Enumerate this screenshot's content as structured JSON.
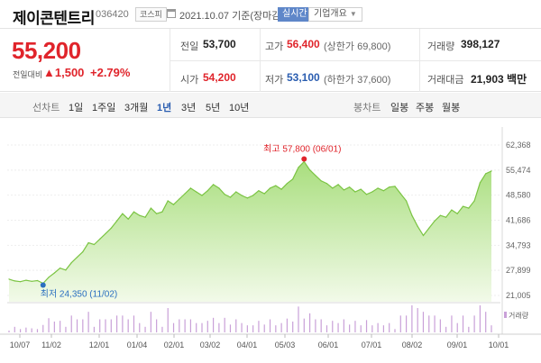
{
  "header": {
    "name": "제이콘텐트리",
    "code": "036420",
    "market": "코스피",
    "date": "2021.10.07 기준(장마감)",
    "realtime": "실시간",
    "company_info": "기업개요"
  },
  "price": {
    "current": "55,200",
    "change_label": "전일대비",
    "change": "▲1,500",
    "change_pct": "+2.79%"
  },
  "quote": {
    "prev_label": "전일",
    "prev": "53,700",
    "high_label": "고가",
    "high": "56,400",
    "upper_limit": "(상한가 69,800)",
    "volume_label": "거래량",
    "volume": "398,127",
    "open_label": "시가",
    "open": "54,200",
    "low_label": "저가",
    "low": "53,100",
    "lower_limit": "(하한가 37,600)",
    "amount_label": "거래대금",
    "amount": "21,903 백만"
  },
  "periods": {
    "line_label": "선차트",
    "items": [
      "1일",
      "1주일",
      "3개월",
      "1년",
      "3년",
      "5년",
      "10년"
    ],
    "active": "1년",
    "candle_label": "봉차트",
    "candle_items": [
      "일봉",
      "주봉",
      "월봉"
    ]
  },
  "chart_data": {
    "type": "area",
    "y_ticks": [
      "62,368",
      "55,474",
      "48,580",
      "41,686",
      "34,793",
      "27,899",
      "21,005"
    ],
    "ylim": [
      21005,
      62368
    ],
    "x_ticks": [
      "10/07",
      "11/02",
      "12/01",
      "01/04",
      "02/01",
      "03/02",
      "04/01",
      "05/03",
      "06/01",
      "07/01",
      "08/02",
      "09/01",
      "10/01"
    ],
    "high_annotation": "최고 57,800 (06/01)",
    "low_annotation": "최저 24,350 (11/02)",
    "volume_label": "거래량",
    "series": [
      {
        "values": [
          25500,
          25000,
          24800,
          25200,
          24900,
          25100,
          24350,
          26000,
          27200,
          28500,
          28000,
          30000,
          31500,
          33000,
          35500,
          35000,
          36500,
          38000,
          39500,
          41500,
          43500,
          42000,
          44000,
          43000,
          42500,
          45000,
          43500,
          44000,
          47000,
          46000,
          47500,
          49000,
          50500,
          49500,
          48500,
          49800,
          51500,
          50500,
          48800,
          48000,
          49500,
          48500,
          47800,
          48500,
          49800,
          49000,
          50500,
          51200,
          50200,
          51800,
          53000,
          56200,
          57800,
          55500,
          54000,
          52500,
          51800,
          50500,
          51500,
          50000,
          50800,
          49500,
          50200,
          48800,
          49500,
          50500,
          49800,
          50800,
          51000,
          49000,
          47000,
          43000,
          40000,
          37500,
          39500,
          41500,
          43000,
          42500,
          44500,
          43500,
          45500,
          45000,
          47000,
          52000,
          54500,
          55200
        ]
      }
    ],
    "color": "#7bc443"
  }
}
